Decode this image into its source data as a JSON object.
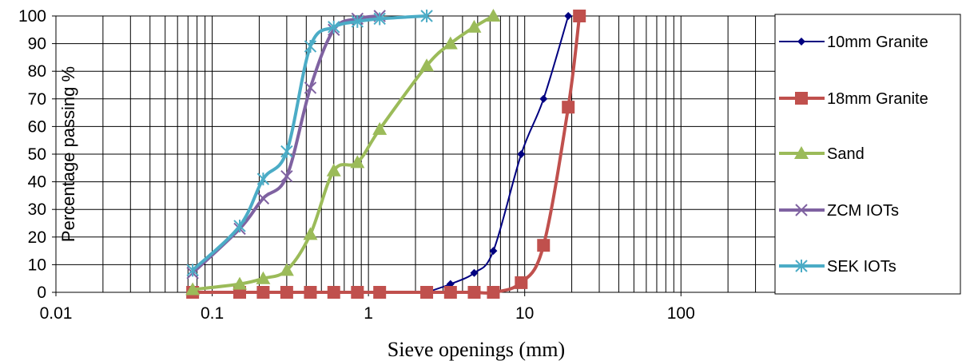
{
  "chart_data": {
    "type": "line",
    "title": "",
    "xlabel": "Sieve openings (mm)",
    "ylabel": "Percentage passing %",
    "xscale": "log",
    "xlim": [
      0.01,
      400
    ],
    "ylim": [
      0,
      100
    ],
    "xticks": [
      0.01,
      0.1,
      1,
      10,
      100
    ],
    "xtick_labels": [
      "0.01",
      "0.1",
      "1",
      "10",
      "100"
    ],
    "yticks": [
      0,
      10,
      20,
      30,
      40,
      50,
      60,
      70,
      80,
      90,
      100
    ],
    "ytick_labels": [
      "0",
      "10",
      "20",
      "30",
      "40",
      "50",
      "60",
      "70",
      "80",
      "90",
      "100"
    ],
    "grid": true,
    "legend_position": "right",
    "series": [
      {
        "name": "10mm Granite",
        "color": "#000080",
        "marker": "diamond",
        "x": [
          2.36,
          3.35,
          4.75,
          6.3,
          9.5,
          13.2,
          19
        ],
        "y": [
          0,
          3,
          7,
          15,
          50,
          70,
          100
        ]
      },
      {
        "name": "18mm Granite",
        "color": "#c0504d",
        "marker": "square",
        "x": [
          0.075,
          0.15,
          0.212,
          0.3,
          0.425,
          0.6,
          0.85,
          1.18,
          2.36,
          3.35,
          4.75,
          6.3,
          9.5,
          13.2,
          19,
          22.4
        ],
        "y": [
          0,
          0,
          0,
          0,
          0,
          0,
          0,
          0,
          0,
          0,
          0,
          0,
          3.5,
          17,
          67,
          100
        ]
      },
      {
        "name": "Sand",
        "color": "#9bbb59",
        "marker": "triangle",
        "x": [
          0.075,
          0.15,
          0.212,
          0.3,
          0.425,
          0.6,
          0.85,
          1.18,
          2.36,
          3.35,
          4.75,
          6.3
        ],
        "y": [
          1,
          3,
          5,
          8,
          21,
          44,
          47,
          59,
          82,
          90,
          96,
          100
        ]
      },
      {
        "name": "ZCM IOTs",
        "color": "#7f62a1",
        "marker": "x",
        "x": [
          0.075,
          0.15,
          0.212,
          0.3,
          0.425,
          0.6,
          0.85,
          1.18
        ],
        "y": [
          7,
          23,
          34,
          42,
          74,
          95,
          99,
          100
        ]
      },
      {
        "name": "SEK IOTs",
        "color": "#4bacc6",
        "marker": "star",
        "x": [
          0.075,
          0.15,
          0.212,
          0.3,
          0.425,
          0.6,
          0.85,
          1.18,
          2.36
        ],
        "y": [
          8,
          24,
          41,
          51,
          89,
          96,
          98,
          99,
          100
        ]
      }
    ]
  }
}
